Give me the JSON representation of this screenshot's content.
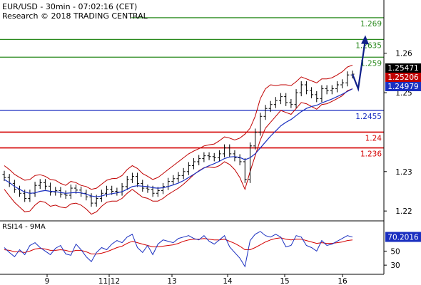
{
  "header": {
    "instrument_line": "EUR/USD - 30min - 07:02:16 (CET)",
    "source_line": "Research © 2018 TRADING CENTRAL"
  },
  "rsi_title": "RSI14 - 9MA",
  "colors": {
    "resistance": "#2a8a1e",
    "pivot": "#1a2fc0",
    "support": "#d40000",
    "price": "#000000",
    "band": "#c00000",
    "ma": "#1a2fc0",
    "forecast_arrow": "#10208a",
    "badge_price": "#000000",
    "badge_resistance": "#c00000",
    "badge_support": "#1a2fc0",
    "badge_rsi": "#1a2fc0"
  },
  "chart_data": [
    {
      "type": "line",
      "name": "price",
      "x_labels": [
        "9",
        "11|12",
        "13",
        "14",
        "15",
        "16"
      ],
      "ylim": [
        1.2175,
        1.2735
      ],
      "y_ticks": [
        "1.26",
        "1.25",
        "1.23",
        "1.22"
      ],
      "y_tick_values": [
        1.26,
        1.25,
        1.23,
        1.22
      ],
      "levels": [
        {
          "label": "1.269",
          "value": 1.269,
          "role": "resistance"
        },
        {
          "label": "1.2635",
          "value": 1.2635,
          "role": "resistance"
        },
        {
          "label": "1.259",
          "value": 1.259,
          "role": "resistance"
        },
        {
          "label": "1.2455",
          "value": 1.2455,
          "role": "pivot"
        },
        {
          "label": "1.24",
          "value": 1.24,
          "role": "support"
        },
        {
          "label": "1.236",
          "value": 1.236,
          "role": "support"
        }
      ],
      "badges": [
        {
          "label": "1.25471",
          "value": 1.25471,
          "role": "price"
        },
        {
          "label": "1.25206",
          "value": 1.25206,
          "role": "resistance"
        },
        {
          "label": "1.24979",
          "value": 1.24979,
          "role": "support"
        }
      ],
      "close": [
        1.2285,
        1.227,
        1.2255,
        1.2245,
        1.2232,
        1.2245,
        1.2265,
        1.2272,
        1.2263,
        1.2248,
        1.2252,
        1.2243,
        1.224,
        1.2258,
        1.2253,
        1.2245,
        1.2236,
        1.222,
        1.2232,
        1.2245,
        1.2255,
        1.225,
        1.2248,
        1.2262,
        1.228,
        1.2288,
        1.227,
        1.2258,
        1.2255,
        1.2245,
        1.2252,
        1.2262,
        1.2275,
        1.2282,
        1.229,
        1.23,
        1.2315,
        1.2325,
        1.2333,
        1.234,
        1.2338,
        1.2335,
        1.2345,
        1.236,
        1.2345,
        1.2335,
        1.2325,
        1.228,
        1.2365,
        1.24,
        1.244,
        1.246,
        1.247,
        1.248,
        1.249,
        1.2475,
        1.247,
        1.25,
        1.252,
        1.2505,
        1.2495,
        1.2485,
        1.251,
        1.2505,
        1.251,
        1.252,
        1.2525,
        1.2545,
        1.2547
      ],
      "upper_band": [
        1.2315,
        1.2305,
        1.2293,
        1.2285,
        1.2278,
        1.228,
        1.229,
        1.2292,
        1.2288,
        1.228,
        1.2278,
        1.227,
        1.2265,
        1.2275,
        1.2272,
        1.2265,
        1.2262,
        1.2255,
        1.2258,
        1.2268,
        1.2278,
        1.2282,
        1.2283,
        1.229,
        1.2305,
        1.2315,
        1.2308,
        1.2295,
        1.2288,
        1.228,
        1.2285,
        1.2295,
        1.2305,
        1.2315,
        1.2325,
        1.2335,
        1.2345,
        1.2352,
        1.2358,
        1.2365,
        1.2368,
        1.237,
        1.2378,
        1.2388,
        1.2385,
        1.238,
        1.2385,
        1.2395,
        1.241,
        1.244,
        1.2485,
        1.251,
        1.252,
        1.2518,
        1.252,
        1.252,
        1.2518,
        1.2528,
        1.254,
        1.2535,
        1.253,
        1.2525,
        1.2535,
        1.2535,
        1.2538,
        1.2545,
        1.2553,
        1.2565,
        1.257
      ],
      "lower_band": [
        1.2255,
        1.2238,
        1.2222,
        1.221,
        1.2198,
        1.22,
        1.2215,
        1.2225,
        1.2222,
        1.2212,
        1.2215,
        1.221,
        1.2208,
        1.2218,
        1.222,
        1.2215,
        1.2205,
        1.2192,
        1.2198,
        1.2212,
        1.2222,
        1.2225,
        1.2225,
        1.2232,
        1.2245,
        1.2255,
        1.2245,
        1.2235,
        1.2232,
        1.2225,
        1.2225,
        1.2232,
        1.2242,
        1.225,
        1.2258,
        1.2268,
        1.228,
        1.2292,
        1.2302,
        1.231,
        1.2312,
        1.231,
        1.2315,
        1.2325,
        1.2318,
        1.2305,
        1.2285,
        1.2255,
        1.23,
        1.234,
        1.238,
        1.241,
        1.2425,
        1.244,
        1.2455,
        1.245,
        1.2445,
        1.246,
        1.2475,
        1.2472,
        1.2465,
        1.2458,
        1.247,
        1.2472,
        1.2478,
        1.2485,
        1.2492,
        1.2505,
        1.251
      ],
      "moving_average": [
        1.228,
        1.2272,
        1.2262,
        1.2255,
        1.2248,
        1.2245,
        1.2246,
        1.225,
        1.2252,
        1.225,
        1.2249,
        1.2247,
        1.2245,
        1.2246,
        1.2247,
        1.2246,
        1.2243,
        1.2238,
        1.2236,
        1.2238,
        1.2242,
        1.2244,
        1.2246,
        1.2249,
        1.2255,
        1.2262,
        1.2264,
        1.2263,
        1.2262,
        1.2259,
        1.2258,
        1.2259,
        1.2262,
        1.2266,
        1.2271,
        1.2277,
        1.2285,
        1.2293,
        1.2301,
        1.2309,
        1.2315,
        1.232,
        1.2326,
        1.2333,
        1.2337,
        1.2338,
        1.2336,
        1.233,
        1.2335,
        1.2345,
        1.236,
        1.2375,
        1.239,
        1.2403,
        1.2416,
        1.2425,
        1.2432,
        1.2442,
        1.2452,
        1.246,
        1.2465,
        1.2468,
        1.2474,
        1.2479,
        1.2484,
        1.249,
        1.2496,
        1.2503,
        1.251
      ],
      "forecast": [
        1.2547,
        1.251,
        1.2635
      ]
    },
    {
      "type": "line",
      "name": "rsi",
      "ylim": [
        20,
        90
      ],
      "y_ticks": [
        "50",
        "30"
      ],
      "y_tick_values": [
        50,
        30
      ],
      "badge": {
        "label": "70.2016",
        "value": 70.2016
      },
      "rsi": [
        55,
        48,
        42,
        52,
        45,
        58,
        62,
        55,
        50,
        45,
        54,
        58,
        46,
        44,
        60,
        52,
        42,
        35,
        48,
        55,
        52,
        60,
        65,
        62,
        70,
        74,
        55,
        48,
        58,
        45,
        60,
        66,
        64,
        62,
        68,
        70,
        72,
        68,
        66,
        72,
        64,
        60,
        66,
        72,
        56,
        48,
        40,
        28,
        65,
        74,
        78,
        72,
        70,
        74,
        70,
        56,
        58,
        72,
        70,
        58,
        55,
        50,
        65,
        58,
        60,
        64,
        68,
        72,
        70
      ],
      "ma": [
        52,
        51,
        49,
        49,
        48,
        50,
        53,
        54,
        53,
        51,
        51,
        52,
        51,
        49,
        51,
        51,
        49,
        46,
        46,
        47,
        49,
        52,
        55,
        57,
        61,
        64,
        62,
        60,
        58,
        56,
        56,
        57,
        58,
        59,
        61,
        64,
        66,
        67,
        67,
        68,
        67,
        66,
        66,
        67,
        64,
        61,
        57,
        52,
        52,
        55,
        59,
        63,
        66,
        68,
        69,
        67,
        66,
        67,
        67,
        65,
        63,
        61,
        62,
        61,
        61,
        62,
        63,
        65,
        66
      ]
    }
  ]
}
